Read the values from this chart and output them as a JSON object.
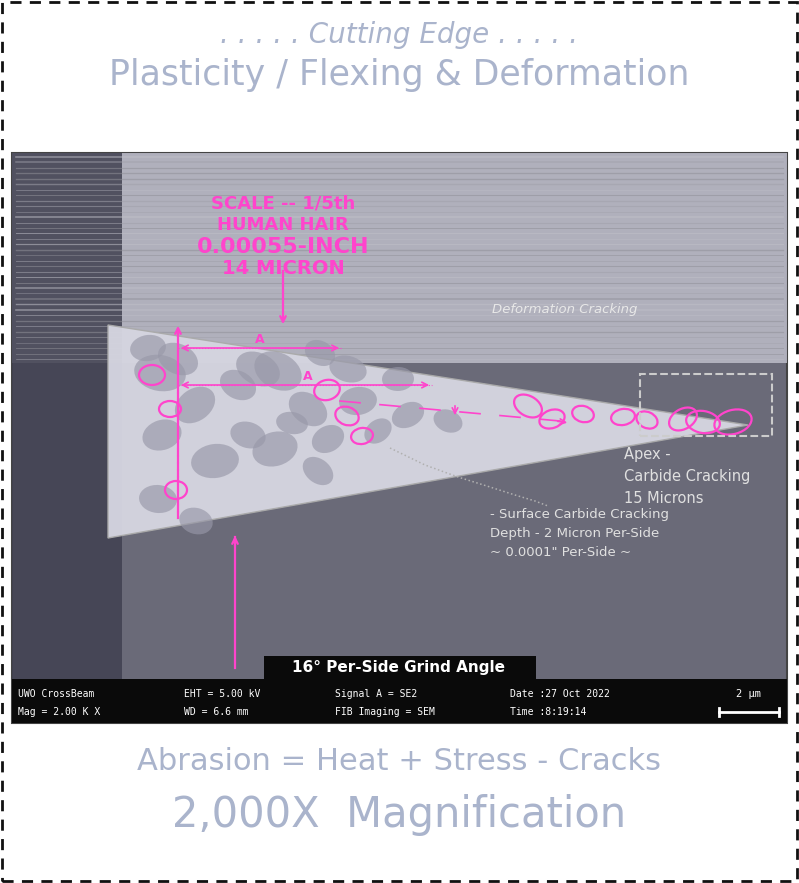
{
  "bg_color": "#ffffff",
  "border_color": "#111111",
  "top_text1": ". . . . . Cutting Edge . . . . .",
  "top_text2": "Plasticity / Flexing & Deformation",
  "top_text_color": "#aab4cc",
  "bottom_text1": "Abrasion = Heat + Stress - Cracks",
  "bottom_text2": "2,000X  Magnification",
  "bottom_text_color": "#aab4cc",
  "scale_text": [
    "SCALE -- 1/5th",
    "HUMAN HAIR",
    "0.00055-INCH",
    "14 MICRON"
  ],
  "scale_text_color": "#ff44cc",
  "annotation_color": "#ff44cc",
  "annotations": {
    "deformation_cracking": "Deformation Cracking",
    "apex_cracking": "Apex -\nCarbide Cracking\n15 Microns",
    "surface_cracking": "- Surface Carbide Cracking\nDepth - 2 Micron Per-Side\n~ 0.0001\" Per-Side ~"
  },
  "bottom_bar_text": "16° Per-Side Grind Angle",
  "sem_info": {
    "left": "UWO CrossBeam\nMag = 2.00 K X",
    "center_left": "EHT = 5.00 kV\nWD = 6.6 mm",
    "center": "Signal A = SE2\nFIB Imaging = SEM",
    "center_right": "Date :27 Oct 2022\nTime :8:19:14",
    "right": "2 μm"
  }
}
